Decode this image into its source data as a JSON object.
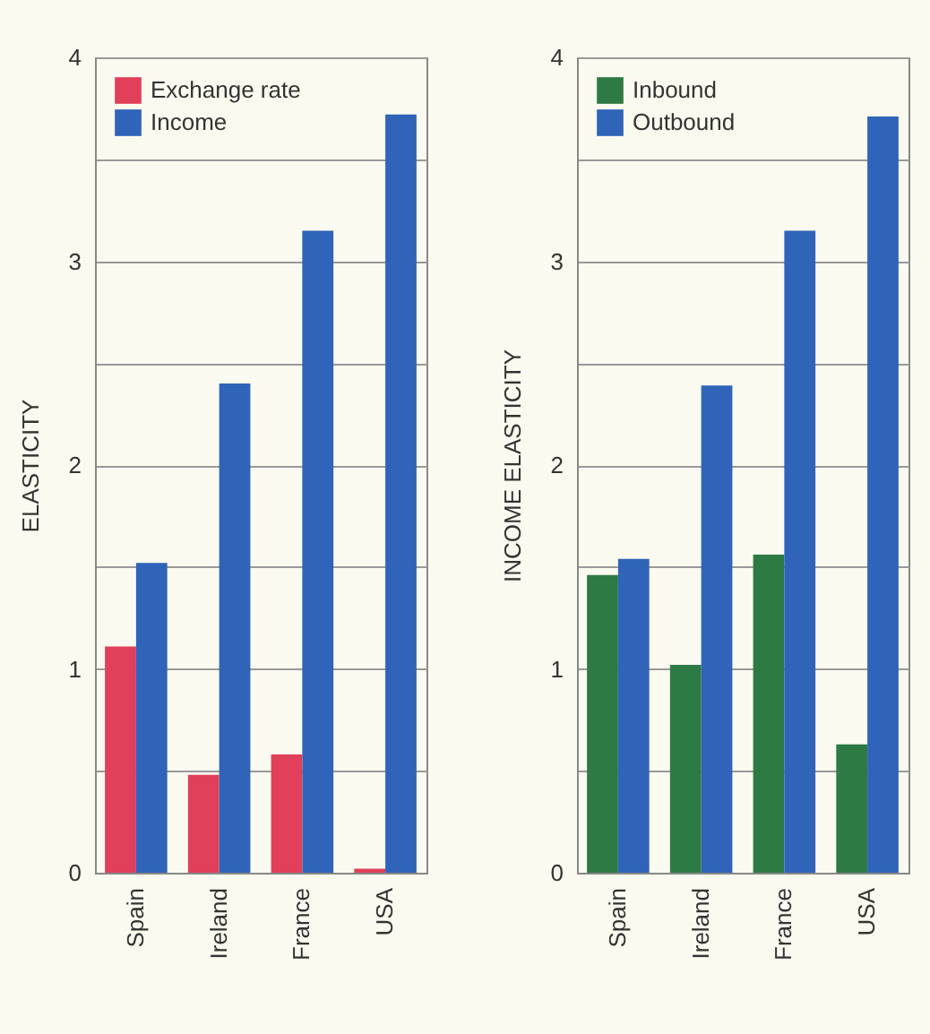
{
  "chart_data": [
    {
      "type": "bar",
      "ylabel": "ELASTICITY",
      "categories": [
        "Spain",
        "Ireland",
        "France",
        "USA"
      ],
      "series": [
        {
          "name": "Exchange rate",
          "color": "#e0405a",
          "values": [
            1.11,
            0.48,
            0.58,
            0.02
          ]
        },
        {
          "name": "Income",
          "color": "#2f64b8",
          "values": [
            1.52,
            2.4,
            3.15,
            3.72
          ]
        }
      ],
      "ylim": [
        0,
        4
      ],
      "yticks": [
        0,
        {
          "value": 0.5,
          "label": null
        },
        1,
        {
          "value": 1.5,
          "label": null
        },
        2,
        {
          "value": 2.5,
          "label": null
        },
        3,
        {
          "value": 3.5,
          "label": null
        },
        4
      ],
      "grid": "y",
      "legend": "top left"
    },
    {
      "type": "bar",
      "ylabel": "INCOME ELASTICITY",
      "categories": [
        "Spain",
        "Ireland",
        "France",
        "USA"
      ],
      "series": [
        {
          "name": "Inbound",
          "color": "#2e7a45",
          "values": [
            1.46,
            1.02,
            1.56,
            0.63
          ]
        },
        {
          "name": "Outbound",
          "color": "#2f64b8",
          "values": [
            1.54,
            2.39,
            3.15,
            3.71
          ]
        }
      ],
      "ylim": [
        0,
        4
      ],
      "yticks": [
        0,
        {
          "value": 0.5,
          "label": null
        },
        1,
        {
          "value": 1.5,
          "label": null
        },
        2,
        {
          "value": 2.5,
          "label": null
        },
        3,
        {
          "value": 3.5,
          "label": null
        },
        4
      ],
      "grid": "y",
      "legend": "top left"
    }
  ]
}
